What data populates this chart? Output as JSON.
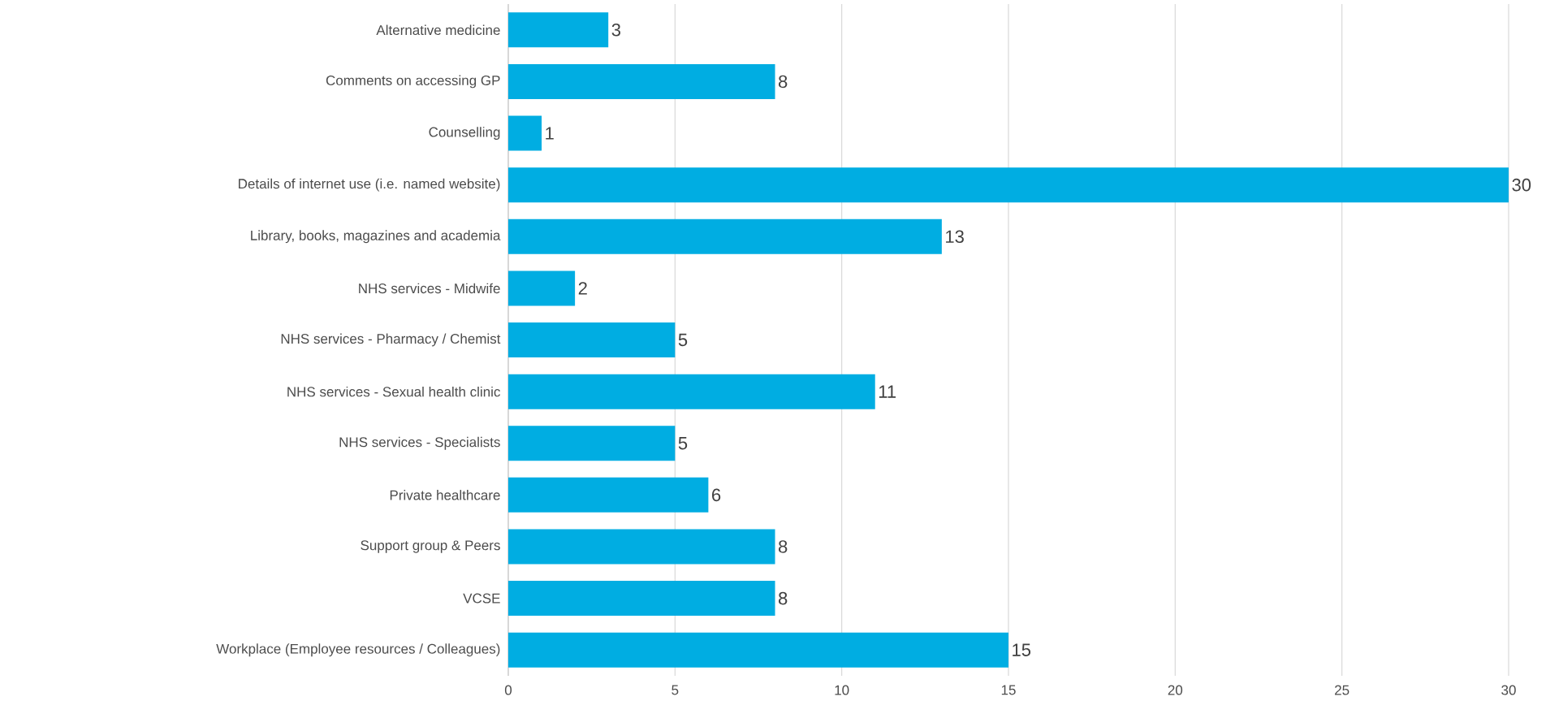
{
  "chart_data": {
    "type": "bar",
    "orientation": "horizontal",
    "categories": [
      "Alternative medicine",
      "Comments on accessing GP",
      "Counselling",
      "Details of internet use (i.e. named website)",
      "Library, books, magazines and academia",
      "NHS services - Midwife",
      "NHS services - Pharmacy / Chemist",
      "NHS services - Sexual health clinic",
      "NHS services - Specialists",
      "Private healthcare",
      "Support group & Peers",
      "VCSE",
      "Workplace (Employee resources / Colleagues)"
    ],
    "values": [
      3,
      8,
      1,
      30,
      13,
      2,
      5,
      11,
      5,
      6,
      8,
      8,
      15
    ],
    "color": "#00ade2",
    "xlim": [
      0,
      30
    ],
    "xticks": [
      0,
      5,
      10,
      15,
      20,
      25,
      30
    ],
    "grid": "x",
    "data_labels": true
  }
}
